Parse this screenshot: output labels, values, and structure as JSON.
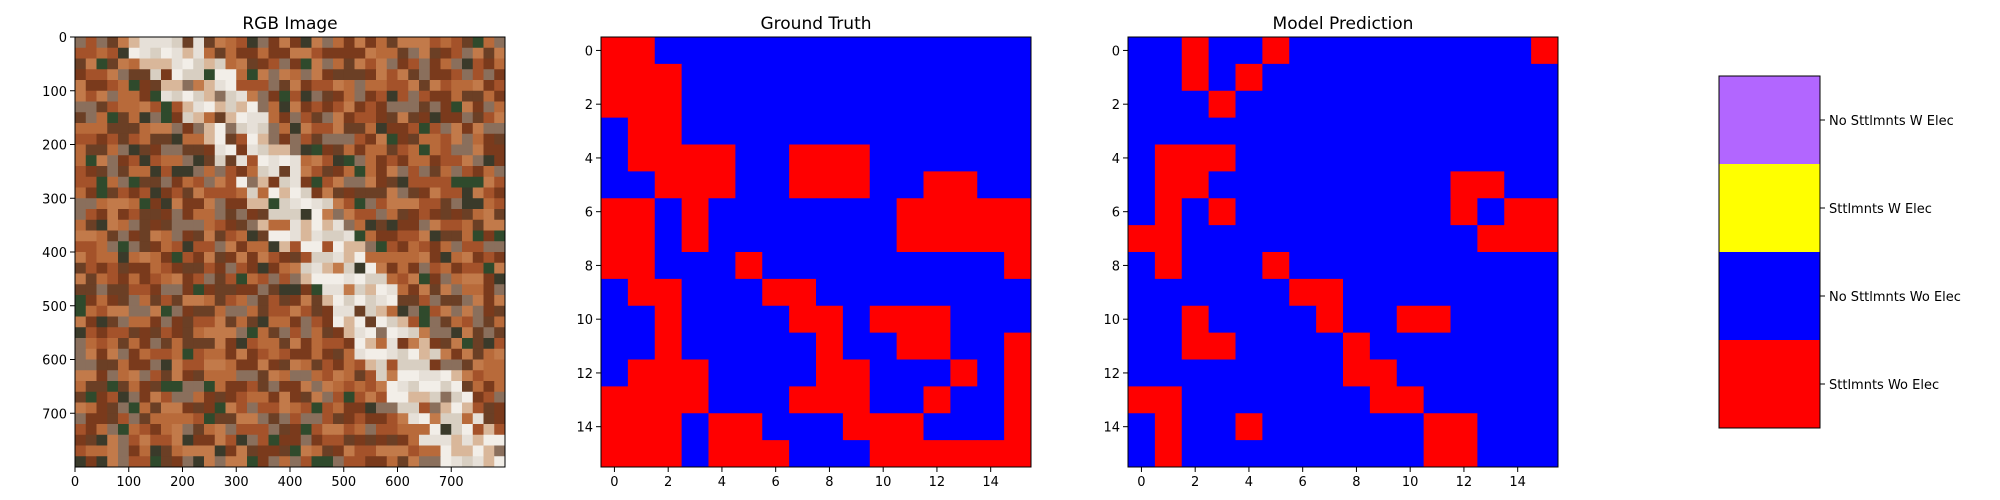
{
  "chart_data": [
    {
      "type": "image",
      "title": "RGB Image",
      "xticks": [
        0,
        100,
        200,
        300,
        400,
        500,
        600,
        700
      ],
      "yticks": [
        0,
        100,
        200,
        300,
        400,
        500,
        600,
        700
      ],
      "xlim": [
        0,
        800
      ],
      "ylim": [
        800,
        0
      ]
    },
    {
      "type": "heatmap",
      "title": "Ground Truth",
      "xticks": [
        0,
        2,
        4,
        6,
        8,
        10,
        12,
        14
      ],
      "yticks": [
        0,
        2,
        4,
        6,
        8,
        10,
        12,
        14
      ],
      "grid": [
        "0011111111111111",
        "0001111111111111",
        "0001111111111111",
        "1001111111111111",
        "1000011000111111",
        "1100011000110011",
        "0010111111100000",
        "0010111111100000",
        "0011101111111110",
        "1001110011111111",
        "1101111001000111",
        "1101111101100110",
        "1000111100111010",
        "0000111000110110",
        "0001001110001110",
        "0001000111000000"
      ]
    },
    {
      "type": "heatmap",
      "title": "Model Prediction",
      "xticks": [
        0,
        2,
        4,
        6,
        8,
        10,
        12,
        14
      ],
      "yticks": [
        0,
        2,
        4,
        6,
        8,
        10,
        12,
        14
      ],
      "grid": [
        "1101101111111110",
        "1101011111111111",
        "1110111111111111",
        "1111111111111111",
        "1000111111111111",
        "1001111111110011",
        "1010111111110100",
        "0011111111111000",
        "1011101111111111",
        "1111110011111111",
        "1101111011001111",
        "1100111101111111",
        "1111111100111111",
        "0011111110011111",
        "1011011111100111",
        "1011111111100111"
      ]
    }
  ],
  "legend": {
    "entries": [
      {
        "label": "No Sttlmnts W Elec",
        "color": "#b266ff"
      },
      {
        "label": "Sttlmnts W Elec",
        "color": "#ffff00"
      },
      {
        "label": "No Sttlmnts Wo Elec",
        "color": "#0000ff"
      },
      {
        "label": "Sttlmnts Wo Elec",
        "color": "#ff0000"
      }
    ]
  },
  "class_colors": {
    "0": "#ff0000",
    "1": "#0000ff"
  },
  "rgb_palette": [
    "#7a3a1c",
    "#a4522a",
    "#c27a4a",
    "#d9b79a",
    "#e6e0d8",
    "#8a6f5c",
    "#3a3a2a",
    "#2f4a2c",
    "#b86a3a",
    "#d8cfc2",
    "#6b3f25",
    "#f2eee8"
  ]
}
